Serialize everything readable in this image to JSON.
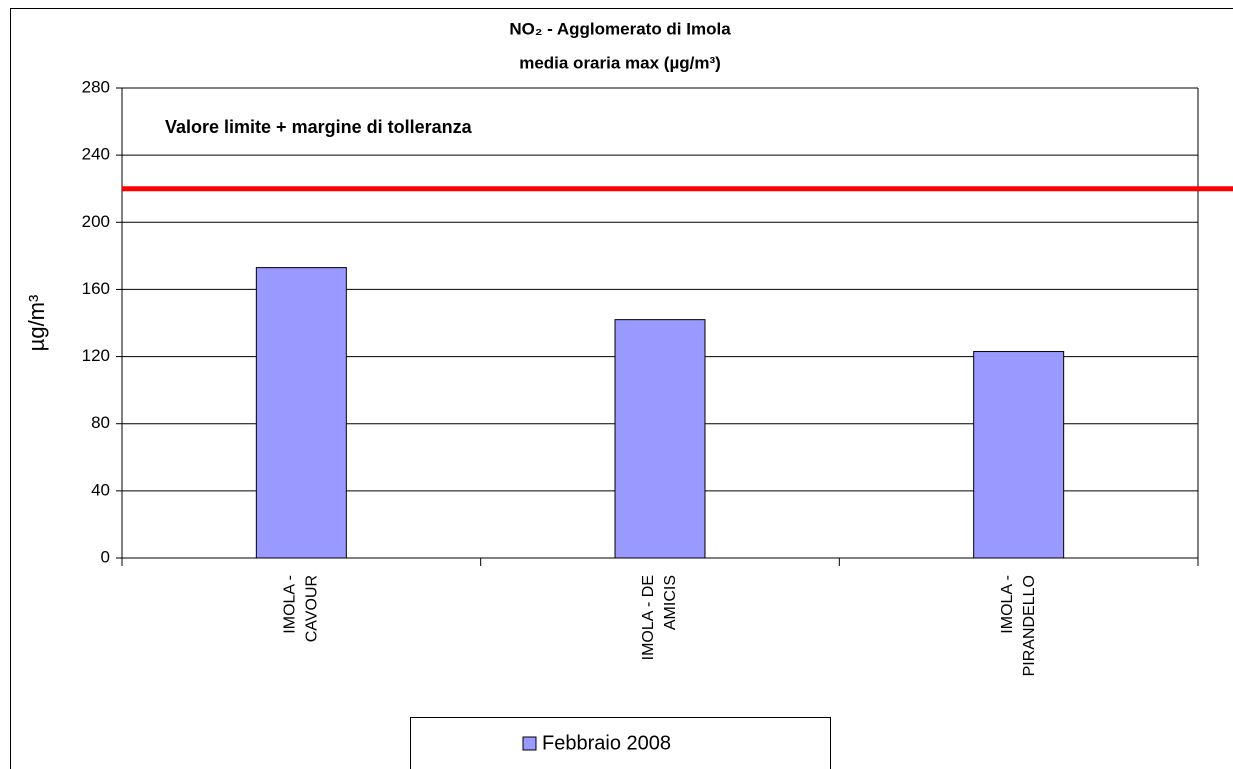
{
  "chart_data": {
    "type": "bar",
    "title": [
      "NO₂ - Agglomerato di Imola",
      "media oraria max  (µg/m³)"
    ],
    "y_label": "µg/m³",
    "categories": [
      [
        "IMOLA -",
        "CAVOUR"
      ],
      [
        "IMOLA - DE",
        "AMICIS"
      ],
      [
        "IMOLA -",
        "PIRANDELLO"
      ]
    ],
    "series": [
      {
        "name": "Febbraio 2008",
        "color": "#9999ff",
        "values": [
          173,
          142,
          123
        ]
      }
    ],
    "ylim": [
      0,
      280
    ],
    "yticks": [
      0,
      40,
      80,
      120,
      160,
      200,
      240,
      280
    ],
    "grid": true,
    "limit_line": {
      "value": 220,
      "label": "Valore limite + margine di tolleranza",
      "color": "#ff0000"
    },
    "legend": "bottom"
  }
}
